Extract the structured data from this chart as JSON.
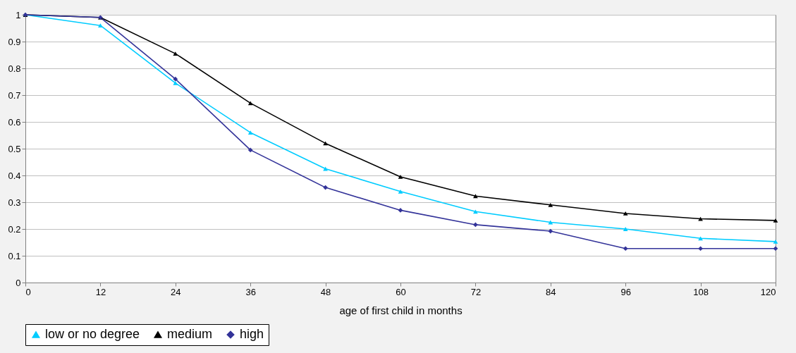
{
  "chart_data": {
    "type": "line",
    "xlabel": "age of first child in months",
    "x": [
      0,
      12,
      24,
      36,
      48,
      60,
      72,
      84,
      96,
      108,
      120
    ],
    "xlim": [
      0,
      120
    ],
    "xticks": [
      0,
      12,
      24,
      36,
      48,
      60,
      72,
      84,
      96,
      108,
      120
    ],
    "ylim": [
      0,
      1
    ],
    "yticks": [
      {
        "value": 0,
        "label": "0"
      },
      0.1,
      0.2,
      0.3,
      0.4,
      0.5,
      0.6,
      0.7,
      0.8,
      0.9,
      {
        "value": 1,
        "label": "1"
      }
    ],
    "grid": "y",
    "legend": "bottom",
    "line_style": "solid",
    "series": [
      {
        "name": "low or no degree",
        "color": "#00ccff",
        "marker": "triangle",
        "values": [
          1.0,
          0.96,
          0.745,
          0.56,
          0.425,
          0.34,
          0.265,
          0.225,
          0.2,
          0.165,
          0.153
        ]
      },
      {
        "name": "medium",
        "color": "#000000",
        "marker": "triangle",
        "values": [
          1.0,
          0.99,
          0.855,
          0.67,
          0.52,
          0.395,
          0.323,
          0.29,
          0.258,
          0.238,
          0.232
        ]
      },
      {
        "name": "high",
        "color": "#333399",
        "marker": "diamond",
        "values": [
          1.0,
          0.99,
          0.76,
          0.495,
          0.355,
          0.27,
          0.216,
          0.192,
          0.127,
          0.127,
          0.127
        ]
      }
    ]
  }
}
